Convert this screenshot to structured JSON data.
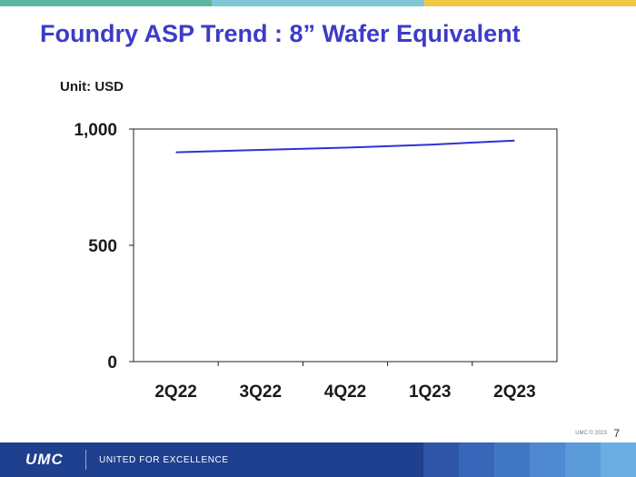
{
  "slide": {
    "title": "Foundry ASP Trend : 8” Wafer Equivalent",
    "unit_label": "Unit: USD",
    "copyright": "UMC © 2023",
    "page_number": "7"
  },
  "footer": {
    "logo_text": "UMC",
    "slogan": "UNITED FOR EXCELLENCE"
  },
  "colors": {
    "title": "#3c3cc8",
    "line": "#3030d8",
    "footer": "#1f3f8f",
    "stripe": [
      "#5bb8a0",
      "#7fc6d6",
      "#f2c744"
    ]
  },
  "chart_data": {
    "type": "line",
    "categories": [
      "2Q22",
      "3Q22",
      "4Q22",
      "1Q23",
      "2Q23"
    ],
    "series": [
      {
        "values": [
          900,
          910,
          920,
          933,
          950
        ]
      }
    ],
    "y_ticks": [
      0,
      500,
      1000
    ],
    "y_tick_labels": [
      "0",
      "500",
      "1,000"
    ],
    "ylim": [
      0,
      1000
    ],
    "grid": false,
    "legend": "none"
  }
}
